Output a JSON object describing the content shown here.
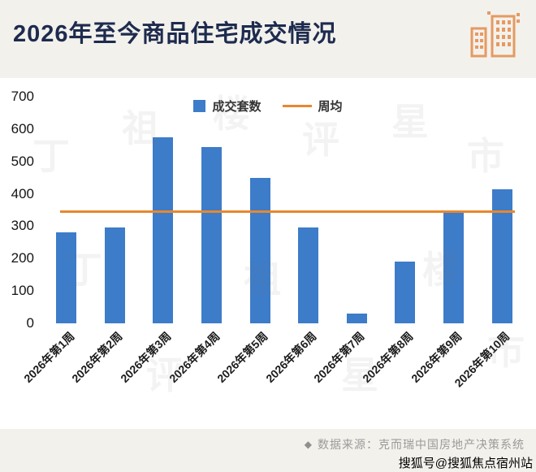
{
  "header": {
    "title": "2026年至今商品住宅成交情况"
  },
  "legend": {
    "bars_label": "成交套数",
    "line_label": "周均"
  },
  "chart_data": {
    "type": "bar",
    "title": "2026年至今商品住宅成交情况",
    "categories": [
      "2026年第1周",
      "2026年第2周",
      "2026年第3周",
      "2026年第4周",
      "2026年第5周",
      "2026年第6周",
      "2026年第7周",
      "2026年第8周",
      "2026年第9周",
      "2026年第10周"
    ],
    "series": [
      {
        "name": "成交套数",
        "values": [
          280,
          295,
          575,
          545,
          450,
          295,
          30,
          190,
          340,
          415
        ]
      }
    ],
    "average_line": {
      "name": "周均",
      "value": 340
    },
    "ylim": [
      0,
      700
    ],
    "yticks": [
      0,
      100,
      200,
      300,
      400,
      500,
      600,
      700
    ],
    "grid": false,
    "legend_position": "top-center",
    "colors": {
      "bar": "#3d7cc9",
      "average_line": "#e8872e",
      "title": "#1d2b4e"
    }
  },
  "footer": {
    "bullet": "◆",
    "source": "数据来源：克而瑞中国房地产决策系统"
  },
  "watermark": {
    "corner": "搜狐号@搜狐焦点宿州站",
    "diagonal_chars": [
      "丁",
      "祖",
      "楼",
      "评",
      "星",
      "市"
    ]
  }
}
